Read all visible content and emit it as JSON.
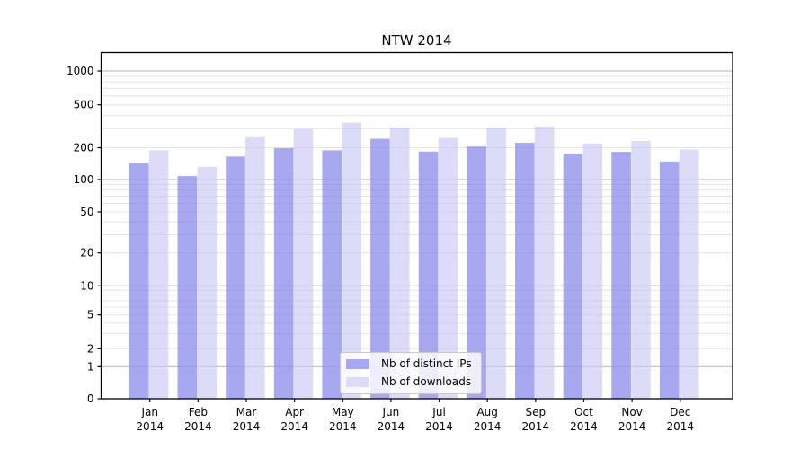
{
  "chart_data": {
    "type": "bar",
    "title": "NTW 2014",
    "categories": [
      {
        "month": "Jan",
        "year": "2014"
      },
      {
        "month": "Feb",
        "year": "2014"
      },
      {
        "month": "Mar",
        "year": "2014"
      },
      {
        "month": "Apr",
        "year": "2014"
      },
      {
        "month": "May",
        "year": "2014"
      },
      {
        "month": "Jun",
        "year": "2014"
      },
      {
        "month": "Jul",
        "year": "2014"
      },
      {
        "month": "Aug",
        "year": "2014"
      },
      {
        "month": "Sep",
        "year": "2014"
      },
      {
        "month": "Oct",
        "year": "2014"
      },
      {
        "month": "Nov",
        "year": "2014"
      },
      {
        "month": "Dec",
        "year": "2014"
      }
    ],
    "series": [
      {
        "name": "Nb of distinct IPs",
        "color": "#a8a8f0",
        "values": [
          142,
          108,
          165,
          198,
          189,
          242,
          184,
          205,
          222,
          176,
          183,
          148
        ]
      },
      {
        "name": "Nb of downloads",
        "color": "#dcdcf8",
        "values": [
          189,
          132,
          250,
          297,
          342,
          308,
          246,
          308,
          315,
          219,
          231,
          192
        ]
      }
    ],
    "yscale": "symlog",
    "yticks": [
      0,
      1,
      2,
      5,
      10,
      20,
      50,
      100,
      200,
      500,
      1000
    ],
    "ylim": [
      0,
      1400
    ],
    "xlabel": "",
    "ylabel": "",
    "grid": true,
    "legend_position": "lower center"
  },
  "colors": {
    "grid_major": "#b2b2b2",
    "grid_minor": "#e4e4e4",
    "axis": "#000000",
    "text": "#000000",
    "background": "#ffffff"
  }
}
